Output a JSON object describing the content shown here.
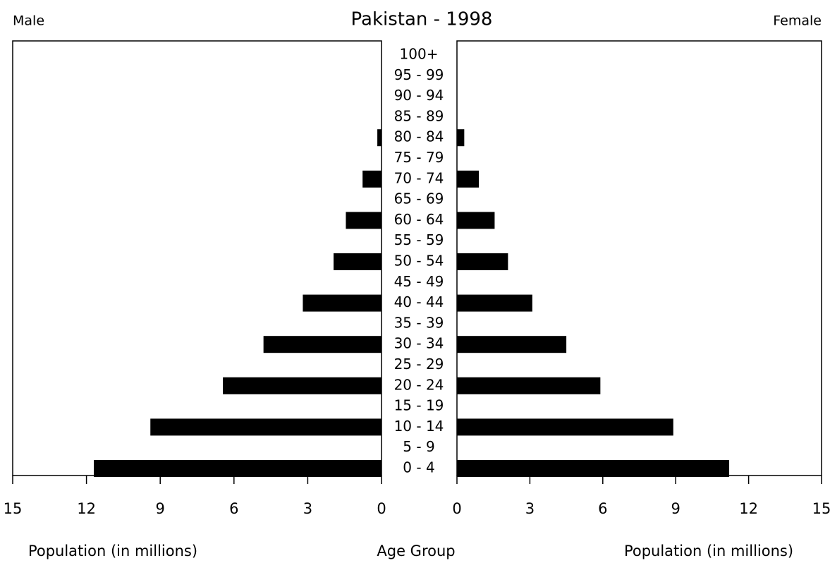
{
  "chart_data": {
    "type": "pyramid",
    "title": "Pakistan - 1998",
    "xlabel": "Population (in millions)",
    "ylabel": "Age Group",
    "categories": [
      "0 - 4",
      "5 - 9",
      "10 - 14",
      "15 - 19",
      "20 - 24",
      "25 - 29",
      "30 - 34",
      "35 - 39",
      "40 - 44",
      "45 - 49",
      "50 - 54",
      "55 - 59",
      "60 - 64",
      "65 - 69",
      "70 - 74",
      "75 - 79",
      "80 - 84",
      "85 - 89",
      "90 - 94",
      "95 - 99",
      "100+"
    ],
    "series": [
      {
        "name": "Male",
        "color": "#000000",
        "values": [
          11.7,
          null,
          9.4,
          null,
          6.45,
          null,
          4.8,
          null,
          3.2,
          null,
          1.95,
          null,
          1.45,
          null,
          0.77,
          null,
          0.17,
          null,
          null,
          null,
          null
        ]
      },
      {
        "name": "Female",
        "color": "#000000",
        "values": [
          11.2,
          null,
          8.9,
          null,
          5.9,
          null,
          4.5,
          null,
          3.1,
          null,
          2.1,
          null,
          1.55,
          null,
          0.9,
          null,
          0.3,
          null,
          null,
          null,
          null
        ]
      }
    ],
    "xlim": [
      0,
      15
    ],
    "xticks": [
      0,
      3,
      6,
      9,
      12,
      15
    ]
  }
}
